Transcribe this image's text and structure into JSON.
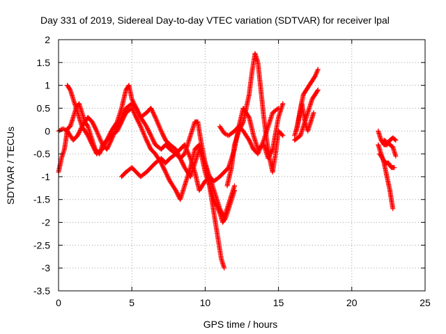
{
  "chart_data": {
    "type": "scatter",
    "title": "Day 331 of 2019, Sidereal Day-to-day VTEC variation (SDTVAR) for receiver lpal",
    "xlabel": "GPS time / hours",
    "ylabel": "SDTVAR / TECUs",
    "xlim": [
      0,
      25
    ],
    "ylim": [
      -3.5,
      2
    ],
    "xticks": [
      0,
      5,
      10,
      15,
      20,
      25
    ],
    "yticks": [
      -3.5,
      -3,
      -2.5,
      -2,
      -1.5,
      -1,
      -0.5,
      0,
      0.5,
      1,
      1.5,
      2
    ],
    "grid": true,
    "marker": "plus",
    "color": "#ff0000",
    "series": [
      {
        "x": [
          0.0,
          0.2,
          0.4,
          0.5,
          0.6,
          0.8,
          1.0,
          1.2,
          1.4,
          1.6,
          1.8,
          2.0,
          2.2,
          2.5,
          2.8,
          3.0,
          3.3,
          3.6,
          4.0,
          4.3,
          4.6,
          5.0,
          5.3,
          5.6,
          6.0,
          6.3,
          6.6,
          7.0,
          7.3,
          7.6,
          8.0,
          8.3,
          8.6,
          9.0,
          9.3,
          9.6,
          9.8,
          10.0,
          10.3,
          10.6,
          11.0,
          11.2,
          11.4,
          11.6,
          11.8,
          12.0
        ],
        "y": [
          -0.9,
          -0.6,
          -0.4,
          -0.2,
          0.05,
          0.1,
          0.3,
          0.5,
          0.6,
          0.4,
          0.2,
          0.1,
          -0.1,
          -0.4,
          -0.5,
          -0.3,
          -0.2,
          -0.1,
          0.0,
          0.2,
          0.4,
          0.5,
          0.3,
          0.1,
          -0.2,
          -0.4,
          -0.5,
          -0.7,
          -0.9,
          -1.1,
          -1.3,
          -1.5,
          -1.2,
          -0.8,
          -0.4,
          -0.3,
          -0.6,
          -0.9,
          -1.2,
          -1.5,
          -1.8,
          -2.0,
          -1.9,
          -1.7,
          -1.5,
          -1.3
        ]
      },
      {
        "x": [
          0.6,
          0.8,
          1.0,
          1.3,
          1.6,
          2.0,
          2.3,
          2.6,
          3.0,
          3.3,
          3.6,
          4.0,
          4.3,
          4.6,
          4.8,
          5.0,
          5.3,
          5.6,
          6.0,
          6.3,
          6.6,
          7.0,
          7.3,
          7.6,
          8.0,
          8.3,
          8.6,
          9.0,
          9.3,
          9.5,
          9.7,
          10.0,
          10.3,
          10.6,
          10.9,
          11.1,
          11.3
        ],
        "y": [
          1.0,
          0.9,
          0.7,
          0.4,
          0.1,
          -0.1,
          -0.3,
          -0.5,
          -0.4,
          -0.2,
          0.0,
          0.2,
          0.5,
          0.9,
          1.0,
          0.7,
          0.5,
          0.3,
          0.4,
          0.5,
          0.3,
          0.0,
          -0.2,
          -0.3,
          -0.4,
          -0.6,
          -0.5,
          -0.1,
          0.2,
          0.2,
          -0.2,
          -0.7,
          -1.2,
          -1.8,
          -2.4,
          -2.8,
          -3.0
        ]
      },
      {
        "x": [
          0.0,
          0.3,
          0.6,
          1.0,
          1.3,
          1.6,
          2.0,
          2.3,
          2.6,
          3.0,
          3.3,
          3.6,
          4.0,
          4.3,
          4.6,
          5.0,
          5.3,
          5.6,
          6.0,
          6.3,
          6.6,
          7.0,
          7.3,
          7.6,
          8.0,
          8.3,
          8.6,
          9.0,
          9.3,
          9.6,
          10.0,
          10.3,
          10.6,
          11.0,
          11.3,
          11.6,
          12.0
        ],
        "y": [
          0.0,
          0.05,
          0.0,
          -0.2,
          -0.1,
          0.1,
          0.3,
          0.2,
          0.0,
          -0.3,
          -0.4,
          -0.2,
          0.1,
          0.3,
          0.5,
          0.6,
          0.5,
          0.3,
          0.1,
          -0.1,
          -0.3,
          -0.4,
          -0.3,
          -0.4,
          -0.5,
          -0.6,
          -0.8,
          -1.0,
          -0.7,
          -0.4,
          -0.7,
          -1.0,
          -1.3,
          -1.7,
          -1.9,
          -1.6,
          -1.2
        ]
      },
      {
        "x": [
          4.3,
          4.6,
          5.0,
          5.3,
          5.6,
          6.0,
          6.3,
          6.6,
          7.0,
          7.3,
          7.6,
          8.0,
          8.3,
          8.6,
          9.0,
          9.3,
          9.6,
          10.0,
          10.3,
          10.6,
          11.0,
          11.3,
          11.6,
          12.0,
          12.3,
          12.6,
          13.0,
          13.3,
          13.6,
          14.0,
          14.3,
          14.6,
          15.0,
          15.3
        ],
        "y": [
          -1.0,
          -0.9,
          -0.8,
          -0.9,
          -1.0,
          -0.9,
          -0.8,
          -0.7,
          -0.6,
          -0.7,
          -0.6,
          -0.5,
          -0.4,
          -0.3,
          -0.6,
          -0.9,
          -1.3,
          -1.1,
          -1.0,
          -1.1,
          -1.0,
          -0.9,
          -0.8,
          -0.4,
          0.1,
          0.5,
          0.3,
          -0.1,
          -0.4,
          -0.3,
          -0.6,
          -0.4,
          0.3,
          0.6
        ]
      },
      {
        "x": [
          11.5,
          11.8,
          12.0,
          12.3,
          12.6,
          12.8,
          13.0,
          13.2,
          13.4,
          13.6,
          13.8,
          14.0,
          14.2,
          14.4,
          14.6,
          14.8,
          15.0,
          15.3
        ],
        "y": [
          -1.2,
          -0.8,
          -0.3,
          0.0,
          0.2,
          0.5,
          0.8,
          1.3,
          1.7,
          1.5,
          0.9,
          0.3,
          -0.2,
          -0.6,
          -0.9,
          -0.5,
          0.0,
          -0.1
        ]
      },
      {
        "x": [
          11.0,
          11.3,
          11.6,
          12.0,
          12.3,
          12.6,
          13.0,
          13.3,
          13.6,
          14.0,
          14.3,
          14.6,
          15.0
        ],
        "y": [
          0.1,
          -0.05,
          -0.1,
          0.0,
          0.1,
          0.0,
          -0.2,
          -0.4,
          -0.5,
          -0.2,
          0.1,
          0.4,
          0.5
        ]
      },
      {
        "x": [
          16.1,
          16.3,
          16.5,
          16.7,
          16.9,
          17.1,
          17.3,
          17.5,
          17.7
        ],
        "y": [
          -0.1,
          0.1,
          0.5,
          0.8,
          0.9,
          1.0,
          1.1,
          1.2,
          1.35
        ]
      },
      {
        "x": [
          16.1,
          16.3,
          16.5,
          16.7,
          16.9,
          17.1,
          17.3,
          17.5,
          17.7
        ],
        "y": [
          -0.2,
          -0.15,
          -0.1,
          0.1,
          0.3,
          0.5,
          0.7,
          0.8,
          0.9
        ]
      },
      {
        "x": [
          16.2,
          16.4,
          16.6,
          16.8,
          17.0,
          17.2,
          17.4
        ],
        "y": [
          0.0,
          0.3,
          0.6,
          0.2,
          0.0,
          0.2,
          0.4
        ]
      },
      {
        "x": [
          21.8,
          22.0,
          22.2,
          22.4,
          22.6,
          22.8,
          23.0
        ],
        "y": [
          0.0,
          -0.2,
          -0.3,
          -0.3,
          -0.2,
          -0.15,
          -0.2
        ]
      },
      {
        "x": [
          21.8,
          22.0,
          22.2,
          22.4,
          22.6,
          22.8
        ],
        "y": [
          -0.3,
          -0.5,
          -0.7,
          -1.0,
          -1.3,
          -1.7
        ]
      },
      {
        "x": [
          21.9,
          22.1,
          22.3,
          22.5,
          22.7,
          22.9
        ],
        "y": [
          -0.5,
          -0.6,
          -0.7,
          -0.7,
          -0.8,
          -0.8
        ]
      },
      {
        "x": [
          22.2,
          22.4,
          22.6,
          22.8,
          23.0
        ],
        "y": [
          -0.2,
          -0.25,
          -0.3,
          -0.35,
          -0.55
        ]
      }
    ]
  }
}
